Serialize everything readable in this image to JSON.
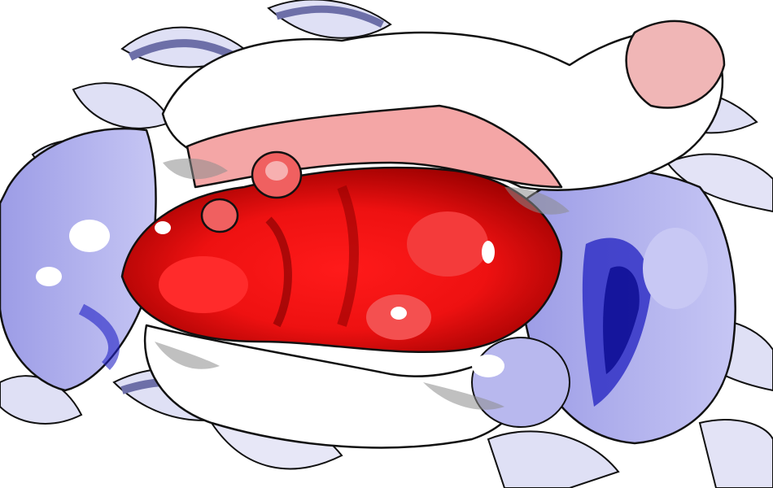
{
  "scene": {
    "subject": "protein-surface-electrostatics",
    "colors": {
      "negative_strong": "#ff0000",
      "negative_mid": "#f06060",
      "negative_light": "#f4a6a6",
      "neutral": "#ffffff",
      "shadow": "#8c8c8c",
      "positive_light": "#b0b0ef",
      "positive_mid": "#7878e0",
      "positive_strong": "#1414c8",
      "outline": "#111111",
      "ribbon_fill": "#dfe0f5",
      "ribbon_shade": "#6d6fa8"
    }
  }
}
